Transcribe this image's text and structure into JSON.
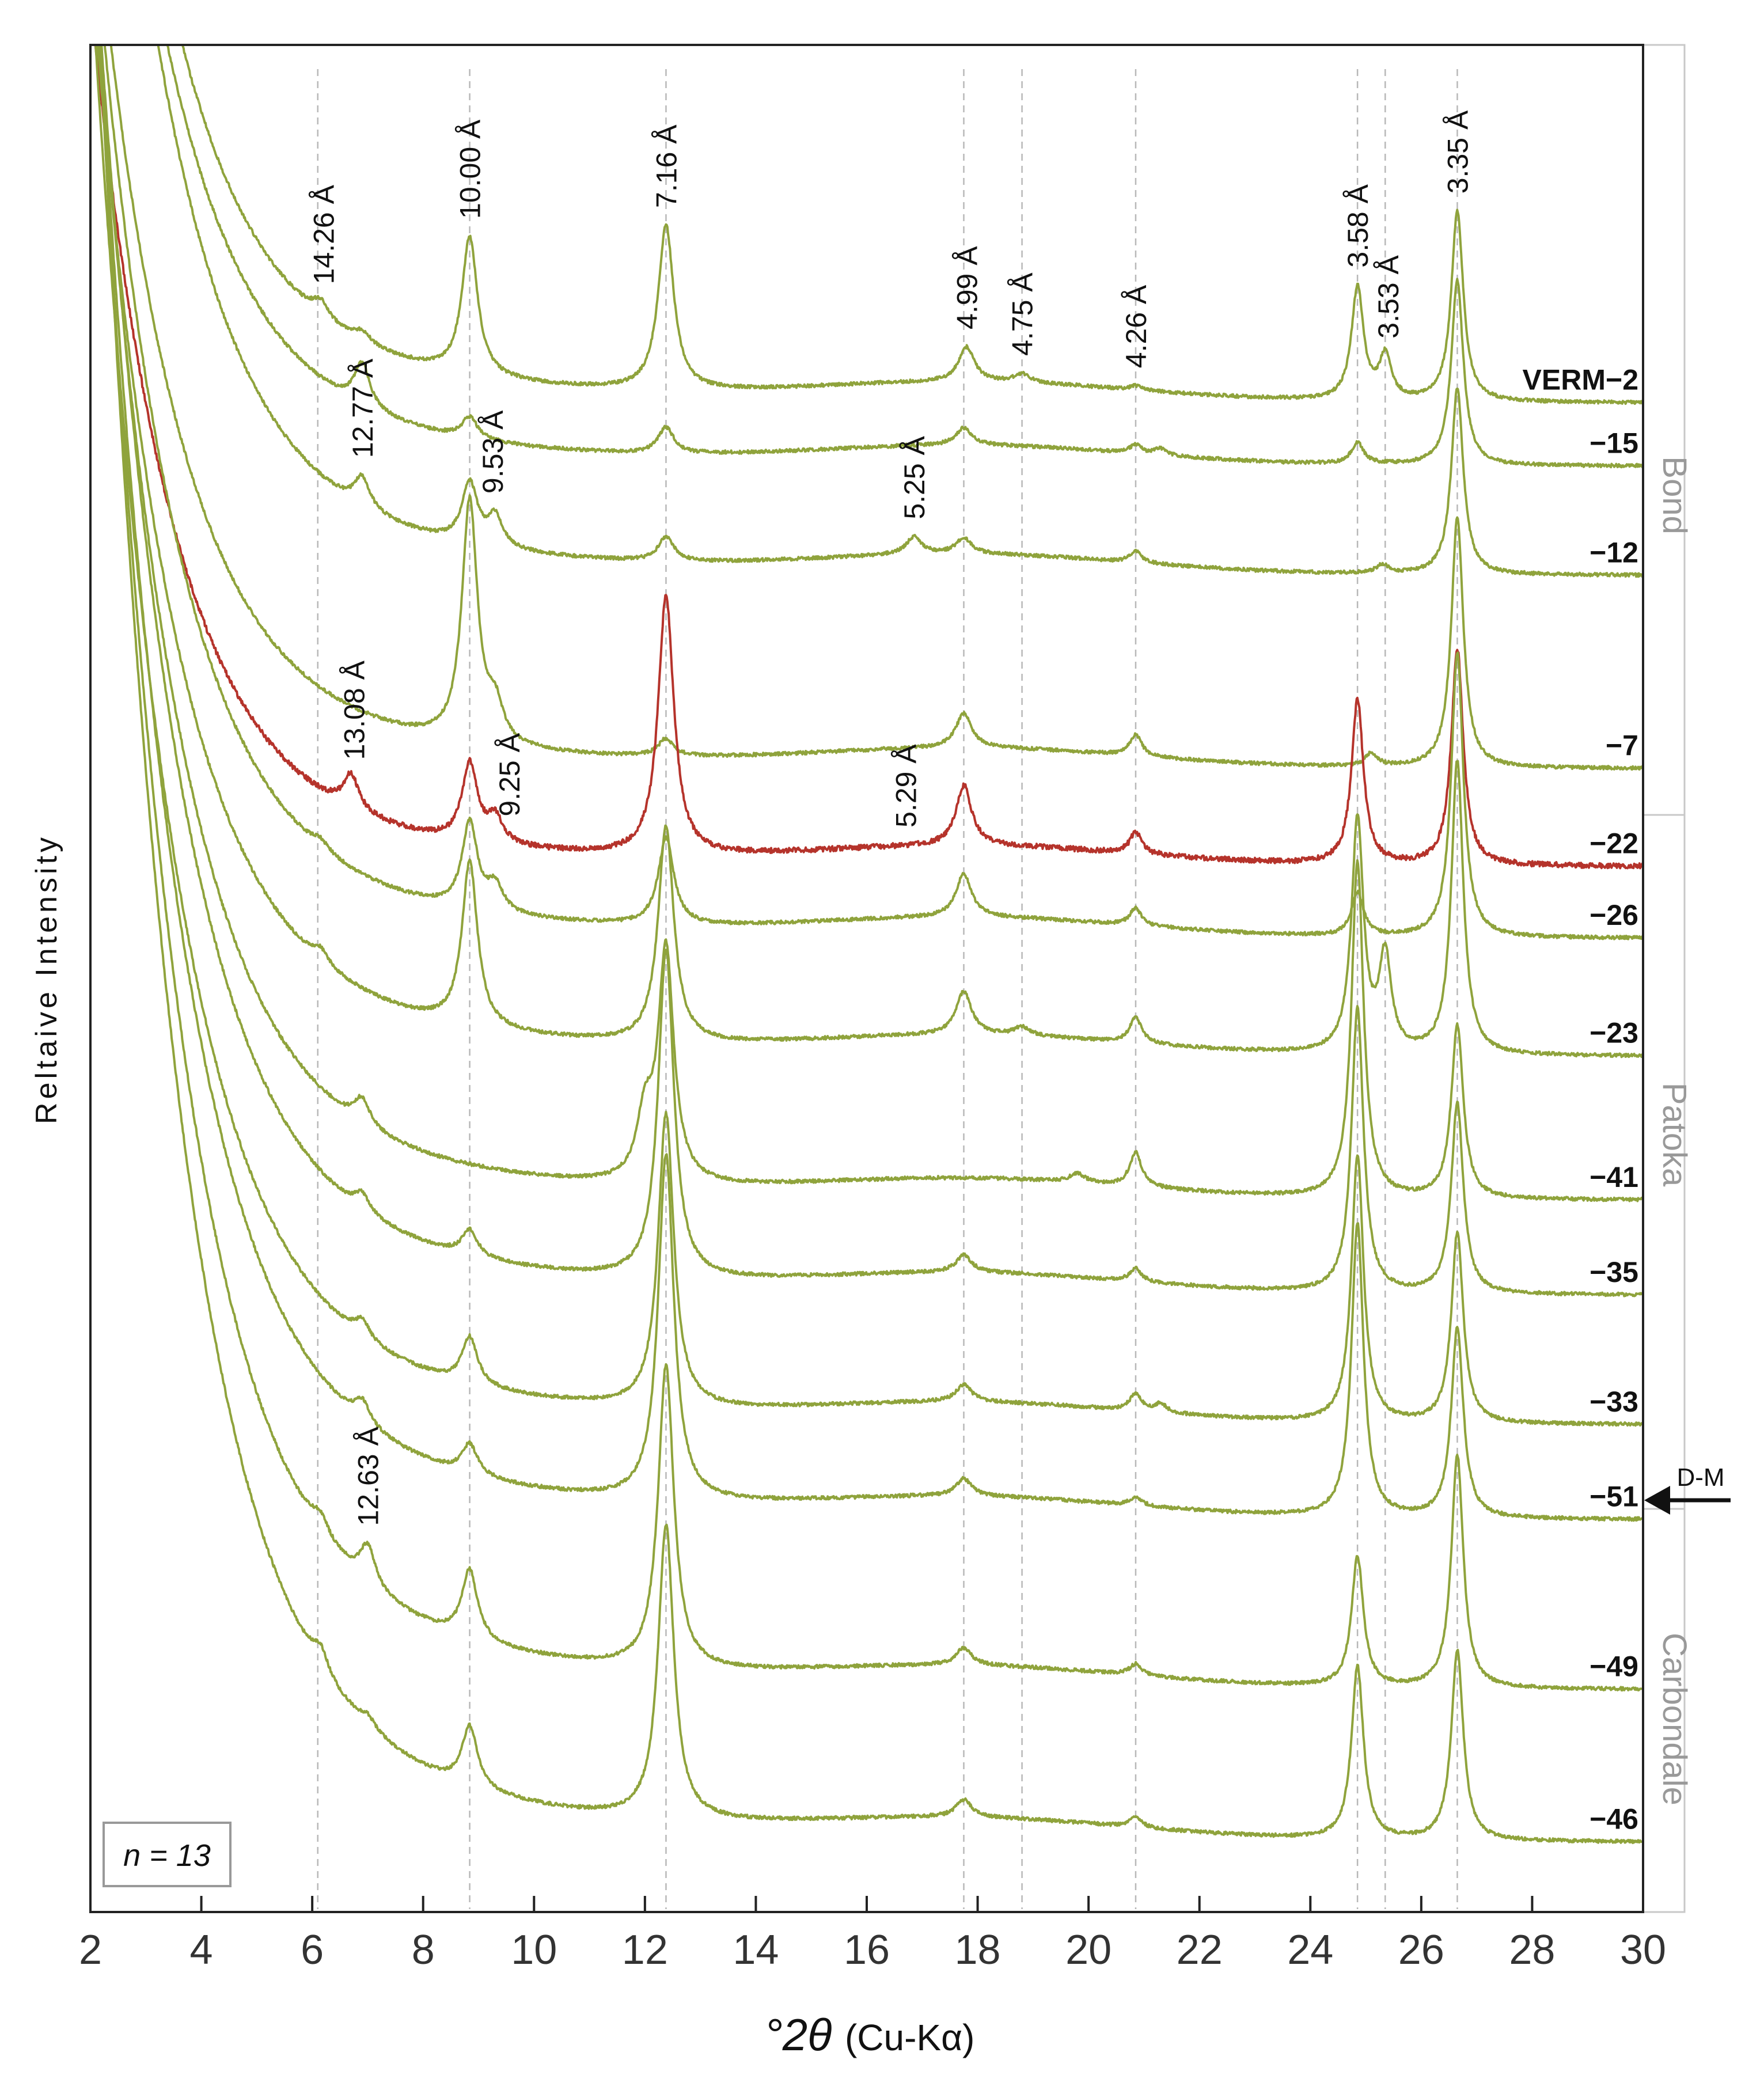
{
  "chart_data": {
    "type": "line",
    "title": "",
    "xlabel_symbol": "°2θ",
    "xlabel_suffix": "(Cu-Kα)",
    "ylabel": "Reltaive Intensity",
    "xlim": [
      2,
      30
    ],
    "xticks": [
      2,
      4,
      6,
      8,
      10,
      12,
      14,
      16,
      18,
      20,
      22,
      24,
      26,
      28,
      30
    ],
    "xtick_labels": [
      "2",
      "4",
      "6",
      "8",
      "10",
      "12",
      "14",
      "16",
      "18",
      "20",
      "22",
      "24",
      "26",
      "28",
      "30"
    ],
    "grid": false,
    "annotation_n": "n = 13",
    "units": [
      {
        "name": "Bond",
        "series_range": [
          "VERM-2",
          "-7"
        ]
      },
      {
        "name": "Patoka",
        "series_range": [
          "-22",
          "-51"
        ]
      },
      {
        "name": "Carbondale",
        "series_range": [
          "-51",
          "-46"
        ]
      }
    ],
    "marker": {
      "text": "D-M",
      "position_between": [
        "-33",
        "-51"
      ]
    },
    "reference_peaks_2theta": [
      6.1,
      8.84,
      12.38,
      17.75,
      18.8,
      20.85,
      24.85,
      25.35,
      26.65
    ],
    "peak_labels": [
      {
        "text": "14.26 Å",
        "x": 6.2,
        "series": "VERM-2"
      },
      {
        "text": "10.00 Å",
        "x": 8.84,
        "series": "VERM-2"
      },
      {
        "text": "7.16 Å",
        "x": 12.38,
        "series": "VERM-2"
      },
      {
        "text": "4.99 Å",
        "x": 17.8,
        "series": "VERM-2"
      },
      {
        "text": "4.75 Å",
        "x": 18.8,
        "series": "VERM-2"
      },
      {
        "text": "4.26 Å",
        "x": 20.85,
        "series": "VERM-2"
      },
      {
        "text": "3.58 Å",
        "x": 24.85,
        "series": "VERM-2"
      },
      {
        "text": "3.53 Å",
        "x": 25.4,
        "series": "VERM-2"
      },
      {
        "text": "3.35 Å",
        "x": 26.65,
        "series": "VERM-2"
      },
      {
        "text": "12.77 Å",
        "x": 6.9,
        "series": "-12"
      },
      {
        "text": "5.25 Å",
        "x": 16.85,
        "series": "-12"
      },
      {
        "text": "9.53 Å",
        "x": 9.25,
        "series": "-12"
      },
      {
        "text": "13.08 Å",
        "x": 6.75,
        "series": "-22"
      },
      {
        "text": "5.29 Å",
        "x": 16.7,
        "series": "-22"
      },
      {
        "text": "9.25 Å",
        "x": 9.55,
        "series": "-22"
      },
      {
        "text": "12.63 Å",
        "x": 7.0,
        "series": "-49"
      }
    ],
    "series": [
      {
        "name": "VERM-2",
        "color": "#8fa33c",
        "peaks": [
          [
            6.15,
            0.018
          ],
          [
            6.9,
            0.012
          ],
          [
            8.84,
            0.16
          ],
          [
            12.38,
            0.19
          ],
          [
            17.8,
            0.04
          ],
          [
            18.8,
            0.01
          ],
          [
            20.85,
            0.005
          ],
          [
            24.85,
            0.13
          ],
          [
            25.35,
            0.05
          ],
          [
            26.65,
            0.22
          ]
        ]
      },
      {
        "name": "-15",
        "color": "#8fa33c",
        "peaks": [
          [
            6.9,
            0.05
          ],
          [
            8.84,
            0.025
          ],
          [
            12.38,
            0.03
          ],
          [
            17.75,
            0.02
          ],
          [
            20.85,
            0.01
          ],
          [
            21.3,
            0.008
          ],
          [
            24.85,
            0.025
          ],
          [
            26.65,
            0.215
          ]
        ]
      },
      {
        "name": "-12",
        "color": "#8fa33c",
        "peaks": [
          [
            6.9,
            0.035
          ],
          [
            8.84,
            0.07
          ],
          [
            9.3,
            0.035
          ],
          [
            12.38,
            0.028
          ],
          [
            16.85,
            0.02
          ],
          [
            17.75,
            0.018
          ],
          [
            20.85,
            0.013
          ],
          [
            25.3,
            0.01
          ],
          [
            26.65,
            0.215
          ]
        ]
      },
      {
        "name": "-7",
        "color": "#8fa33c",
        "peaks": [
          [
            8.84,
            0.28
          ],
          [
            9.3,
            0.04
          ],
          [
            12.38,
            0.02
          ],
          [
            17.75,
            0.04
          ],
          [
            20.85,
            0.025
          ],
          [
            25.1,
            0.015
          ],
          [
            26.65,
            0.29
          ]
        ]
      },
      {
        "name": "-22",
        "color": "#b5332b",
        "peaks": [
          [
            6.7,
            0.04
          ],
          [
            8.84,
            0.09
          ],
          [
            9.3,
            0.03
          ],
          [
            12.38,
            0.3
          ],
          [
            17.75,
            0.07
          ],
          [
            20.85,
            0.025
          ],
          [
            24.85,
            0.19
          ],
          [
            26.65,
            0.25
          ]
        ]
      },
      {
        "name": "-26",
        "color": "#8fa33c",
        "peaks": [
          [
            6.15,
            0.01
          ],
          [
            8.84,
            0.1
          ],
          [
            9.3,
            0.03
          ],
          [
            12.38,
            0.1
          ],
          [
            17.75,
            0.05
          ],
          [
            20.85,
            0.02
          ],
          [
            24.85,
            0.05
          ],
          [
            26.65,
            0.33
          ]
        ]
      },
      {
        "name": "-23",
        "color": "#8fa33c",
        "peaks": [
          [
            6.15,
            0.015
          ],
          [
            8.84,
            0.19
          ],
          [
            12.38,
            0.25
          ],
          [
            17.75,
            0.05
          ],
          [
            18.8,
            0.01
          ],
          [
            20.85,
            0.03
          ],
          [
            24.85,
            0.27
          ],
          [
            25.35,
            0.11
          ],
          [
            26.65,
            0.34
          ]
        ]
      },
      {
        "name": "-41",
        "color": "#8fa33c",
        "peaks": [
          [
            6.9,
            0.03
          ],
          [
            12.0,
            0.07
          ],
          [
            12.38,
            0.27
          ],
          [
            19.8,
            0.01
          ],
          [
            20.85,
            0.04
          ],
          [
            24.85,
            0.39
          ],
          [
            26.65,
            0.2
          ]
        ]
      },
      {
        "name": "-35",
        "color": "#8fa33c",
        "peaks": [
          [
            6.9,
            0.02
          ],
          [
            8.84,
            0.03
          ],
          [
            12.38,
            0.38
          ],
          [
            17.75,
            0.02
          ],
          [
            20.85,
            0.015
          ],
          [
            24.85,
            0.33
          ],
          [
            26.65,
            0.22
          ]
        ]
      },
      {
        "name": "-33",
        "color": "#8fa33c",
        "peaks": [
          [
            6.9,
            0.02
          ],
          [
            8.84,
            0.055
          ],
          [
            12.38,
            0.34
          ],
          [
            17.75,
            0.02
          ],
          [
            20.85,
            0.02
          ],
          [
            21.3,
            0.01
          ],
          [
            24.85,
            0.31
          ],
          [
            26.65,
            0.22
          ]
        ]
      },
      {
        "name": "-51",
        "color": "#8fa33c",
        "peaks": [
          [
            6.9,
            0.025
          ],
          [
            8.84,
            0.035
          ],
          [
            12.38,
            0.4
          ],
          [
            17.75,
            0.02
          ],
          [
            20.85,
            0.01
          ],
          [
            24.85,
            0.34
          ],
          [
            26.65,
            0.22
          ]
        ]
      },
      {
        "name": "-49",
        "color": "#8fa33c",
        "peaks": [
          [
            6.15,
            0.02
          ],
          [
            7.0,
            0.045
          ],
          [
            8.84,
            0.08
          ],
          [
            12.38,
            0.35
          ],
          [
            17.75,
            0.02
          ],
          [
            20.85,
            0.013
          ],
          [
            24.85,
            0.15
          ],
          [
            26.65,
            0.27
          ]
        ]
      },
      {
        "name": "-46",
        "color": "#8fa33c",
        "peaks": [
          [
            6.15,
            0.025
          ],
          [
            7.0,
            0.012
          ],
          [
            8.84,
            0.07
          ],
          [
            12.38,
            0.34
          ],
          [
            17.75,
            0.02
          ],
          [
            20.85,
            0.012
          ],
          [
            24.85,
            0.2
          ],
          [
            26.65,
            0.22
          ]
        ]
      }
    ]
  }
}
